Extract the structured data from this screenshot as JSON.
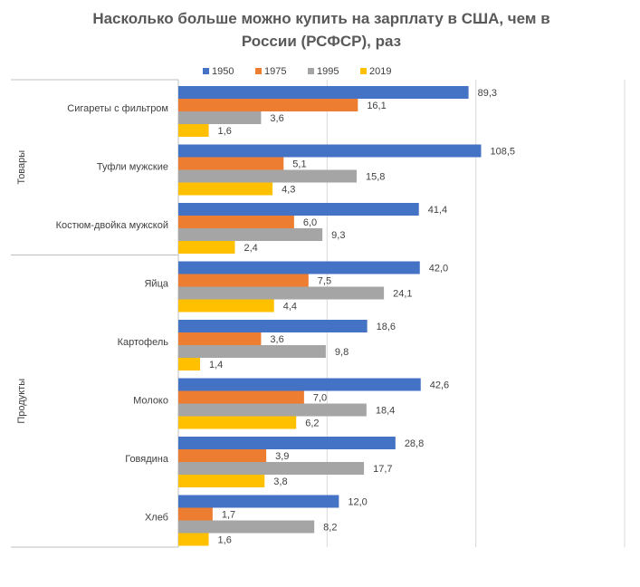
{
  "chart_data": {
    "type": "bar",
    "orientation": "horizontal",
    "title": "Насколько больше можно купить на зарплату в США, чем в России (РСФСР), раз",
    "groups": [
      {
        "name": "Товары",
        "categories": [
          "Сигареты с фильтром",
          "Туфли мужские",
          "Костюм-двойка мужской"
        ]
      },
      {
        "name": "Продукты",
        "categories": [
          "Яйца",
          "Картофель",
          "Молоко",
          "Говядина",
          "Хлеб"
        ]
      }
    ],
    "series": [
      {
        "name": "1950",
        "color": "#4472c4",
        "values": [
          89.3,
          108.5,
          41.4,
          42.0,
          18.6,
          42.6,
          28.8,
          12.0
        ],
        "value_labels": [
          "89,3",
          "108,5",
          "41,4",
          "42,0",
          "18,6",
          "42,6",
          "28,8",
          "12,0"
        ]
      },
      {
        "name": "1975",
        "color": "#ed7d31",
        "values": [
          16.1,
          5.1,
          6.0,
          7.5,
          3.6,
          7.0,
          3.9,
          1.7
        ],
        "value_labels": [
          "16,1",
          "5,1",
          "6,0",
          "7,5",
          "3,6",
          "7,0",
          "3,9",
          "1,7"
        ]
      },
      {
        "name": "1995",
        "color": "#a5a5a5",
        "values": [
          3.6,
          15.8,
          9.3,
          24.1,
          9.8,
          18.4,
          17.7,
          8.2
        ],
        "value_labels": [
          "3,6",
          "15,8",
          "9,3",
          "24,1",
          "9,8",
          "18,4",
          "17,7",
          "8,2"
        ]
      },
      {
        "name": "2019",
        "color": "#ffc000",
        "values": [
          1.6,
          4.3,
          2.4,
          4.4,
          1.4,
          6.2,
          3.8,
          1.6
        ],
        "value_labels": [
          "1,6",
          "4,3",
          "2,4",
          "4,4",
          "1,4",
          "6,2",
          "3,8",
          "1,6"
        ]
      }
    ],
    "xlim": [
      1,
      1000
    ],
    "xticks": [
      1,
      10,
      100,
      1000
    ],
    "log_scale": true,
    "grid": true,
    "legend": "top"
  }
}
